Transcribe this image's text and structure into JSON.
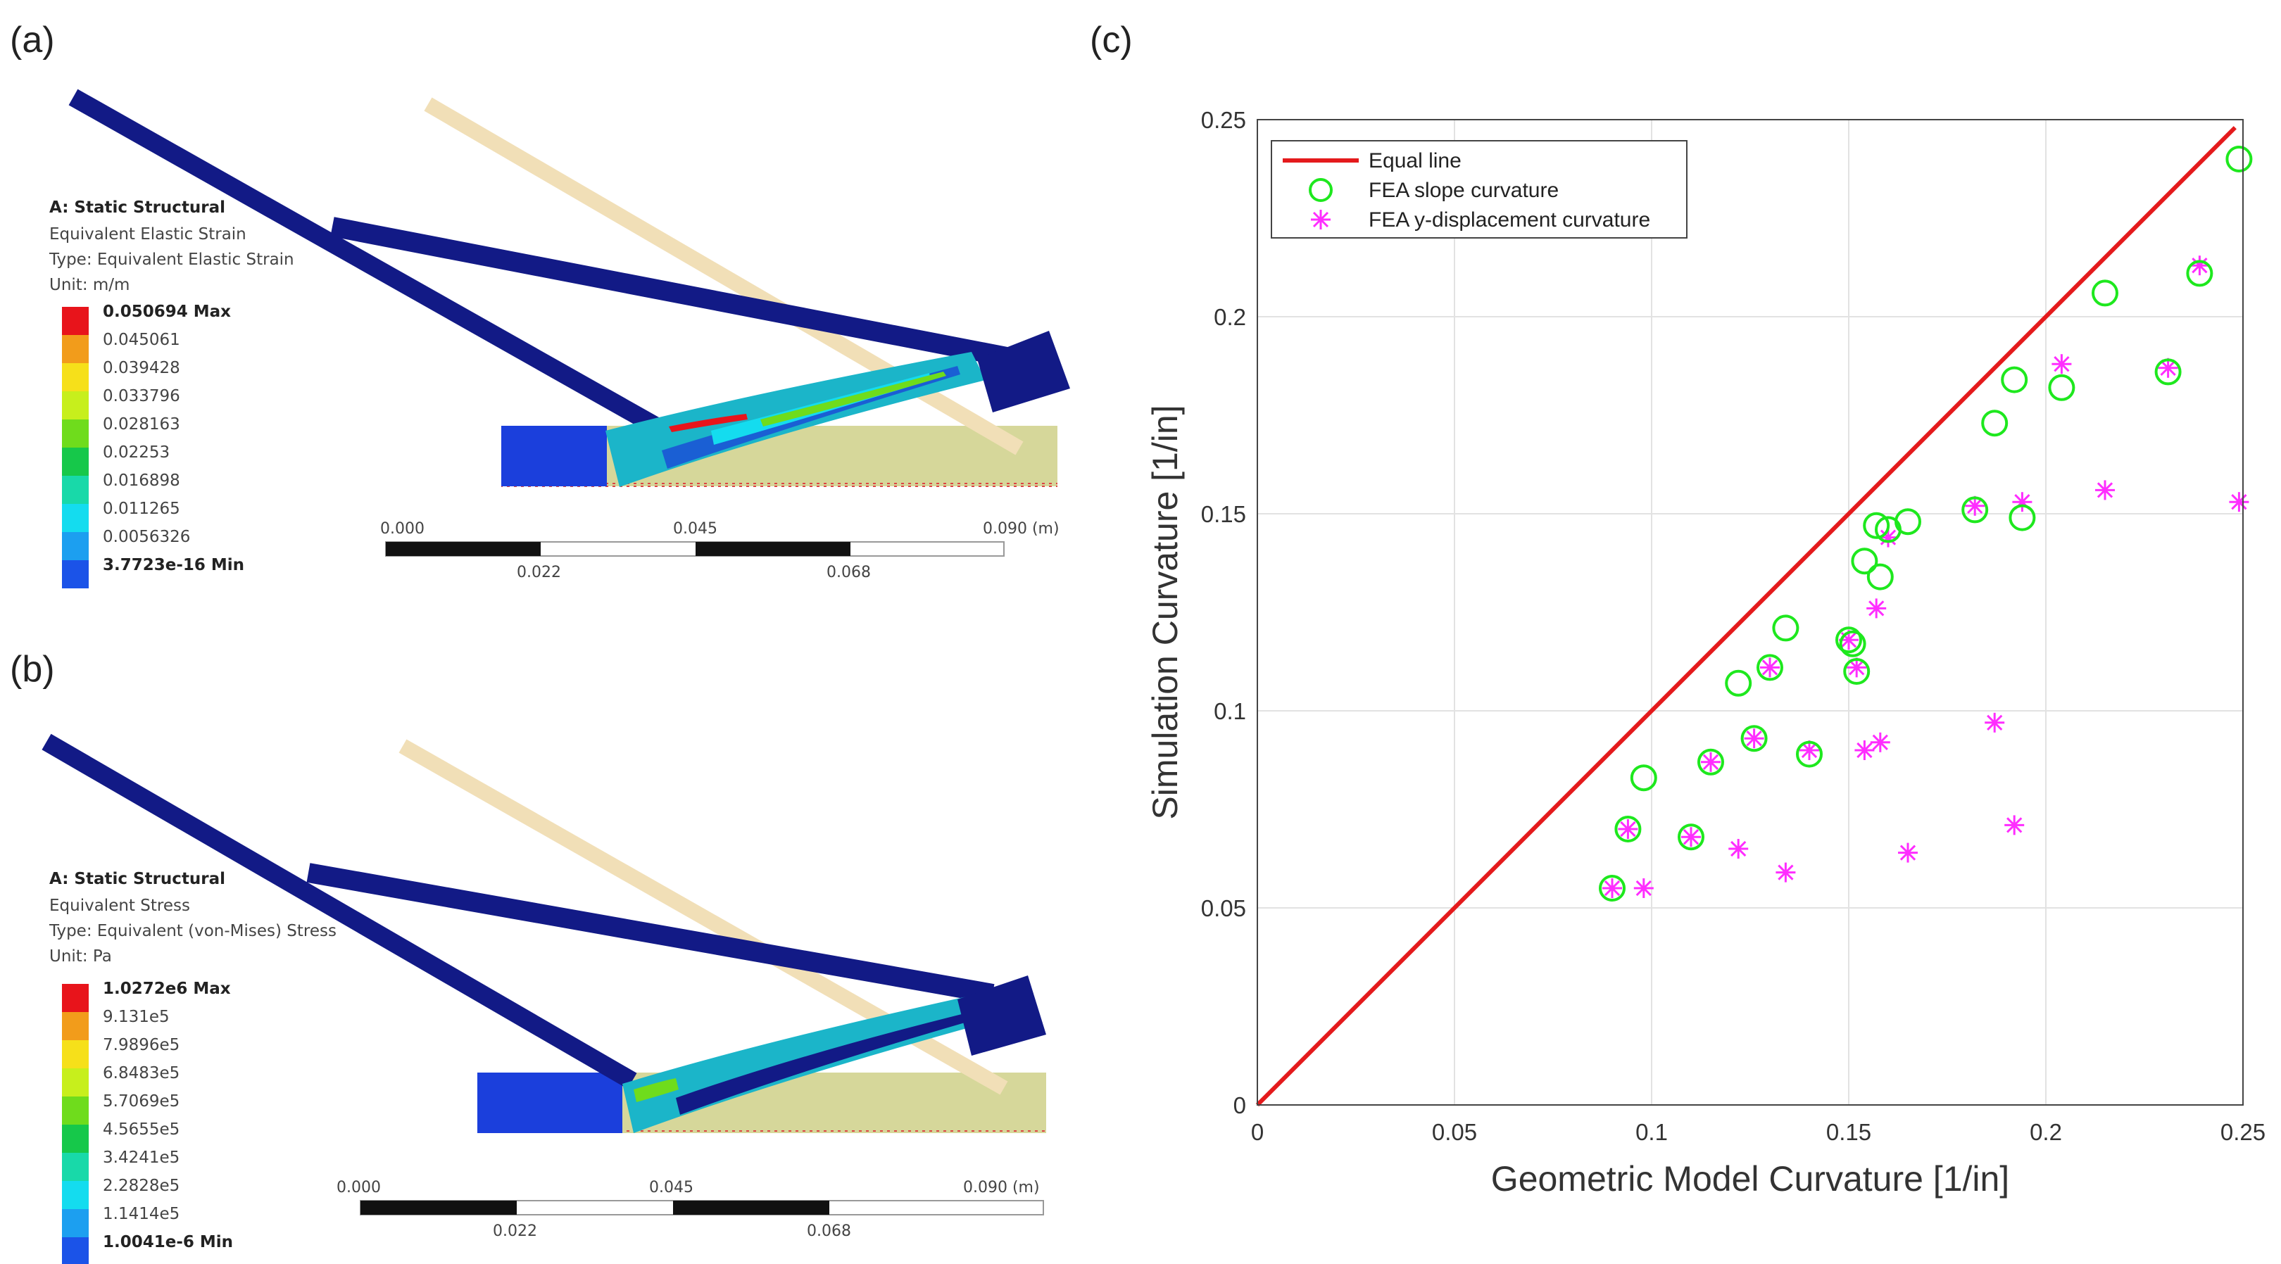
{
  "panels": {
    "a": {
      "letter": "(a)",
      "legend": {
        "title": "A: Static Structural",
        "line1": "Equivalent Elastic Strain",
        "line2": "Type: Equivalent Elastic Strain",
        "line3": "Unit: m/m",
        "max_label": "0.050694 Max",
        "values": [
          "0.045061",
          "0.039428",
          "0.033796",
          "0.028163",
          "0.02253",
          "0.016898",
          "0.011265",
          "0.0056326"
        ],
        "min_label": "3.7723e-16 Min"
      },
      "scale": {
        "t0": "0.000",
        "t1": "0.045",
        "t2": "0.090 (m)",
        "b1": "0.022",
        "b2": "0.068"
      }
    },
    "b": {
      "letter": "(b)",
      "legend": {
        "title": "A: Static Structural",
        "line1": "Equivalent Stress",
        "line2": "Type: Equivalent (von-Mises) Stress",
        "line3": "Unit: Pa",
        "max_label": "1.0272e6 Max",
        "values": [
          "9.131e5",
          "7.9896e5",
          "6.8483e5",
          "5.7069e5",
          "4.5655e5",
          "3.4241e5",
          "2.2828e5",
          "1.1414e5"
        ],
        "min_label": "1.0041e-6 Min"
      },
      "scale": {
        "t0": "0.000",
        "t1": "0.045",
        "t2": "0.090 (m)",
        "b1": "0.022",
        "b2": "0.068"
      }
    },
    "c": {
      "letter": "(c)"
    }
  },
  "colors": {
    "contour": [
      "#e8141b",
      "#f29c1b",
      "#f6e01a",
      "#c7ef1c",
      "#6fdc1c",
      "#16c84a",
      "#18d9a9",
      "#14dcef",
      "#1c9ff0",
      "#1b53e8"
    ],
    "beam": "#121a86",
    "ghost": "#f1dfb7",
    "ground": "#d6d79a",
    "equal_line": "#e41a1c",
    "slope": "#1ee81e",
    "ydisp": "#ff2dff"
  },
  "chart_data": {
    "type": "scatter",
    "title": "",
    "xlabel": "Geometric Model Curvature [1/in]",
    "ylabel": "Simulation Curvature [1/in]",
    "xlim": [
      0,
      0.25
    ],
    "ylim": [
      0,
      0.25
    ],
    "xticks": [
      0,
      0.05,
      0.1,
      0.15,
      0.2,
      0.25
    ],
    "yticks": [
      0,
      0.05,
      0.1,
      0.15,
      0.2,
      0.25
    ],
    "xtick_labels": [
      "0",
      "0.05",
      "0.1",
      "0.15",
      "0.2",
      "0.25"
    ],
    "ytick_labels": [
      "0",
      "0.05",
      "0.1",
      "0.15",
      "0.2",
      "0.25"
    ],
    "grid": true,
    "legend_position": "top-left",
    "series": [
      {
        "name": "Equal line",
        "kind": "line",
        "x": [
          0,
          0.248
        ],
        "y": [
          0,
          0.248
        ]
      },
      {
        "name": "FEA slope curvature",
        "kind": "circle",
        "x": [
          0.09,
          0.094,
          0.098,
          0.11,
          0.115,
          0.122,
          0.126,
          0.13,
          0.134,
          0.14,
          0.15,
          0.151,
          0.152,
          0.154,
          0.157,
          0.158,
          0.16,
          0.165,
          0.182,
          0.187,
          0.192,
          0.194,
          0.204,
          0.215,
          0.231,
          0.239,
          0.249
        ],
        "y": [
          0.055,
          0.07,
          0.083,
          0.068,
          0.087,
          0.107,
          0.093,
          0.111,
          0.121,
          0.089,
          0.118,
          0.117,
          0.11,
          0.138,
          0.147,
          0.134,
          0.146,
          0.148,
          0.151,
          0.173,
          0.184,
          0.149,
          0.182,
          0.206,
          0.186,
          0.211,
          0.24
        ]
      },
      {
        "name": "FEA y-displacement curvature",
        "kind": "star",
        "x": [
          0.09,
          0.094,
          0.098,
          0.11,
          0.115,
          0.122,
          0.126,
          0.13,
          0.134,
          0.14,
          0.15,
          0.152,
          0.154,
          0.157,
          0.158,
          0.16,
          0.165,
          0.182,
          0.187,
          0.192,
          0.194,
          0.204,
          0.215,
          0.231,
          0.239,
          0.249
        ],
        "y": [
          0.055,
          0.07,
          0.055,
          0.068,
          0.087,
          0.065,
          0.093,
          0.111,
          0.059,
          0.09,
          0.118,
          0.111,
          0.09,
          0.126,
          0.092,
          0.144,
          0.064,
          0.152,
          0.097,
          0.071,
          0.153,
          0.188,
          0.156,
          0.187,
          0.213,
          0.153
        ]
      }
    ]
  }
}
